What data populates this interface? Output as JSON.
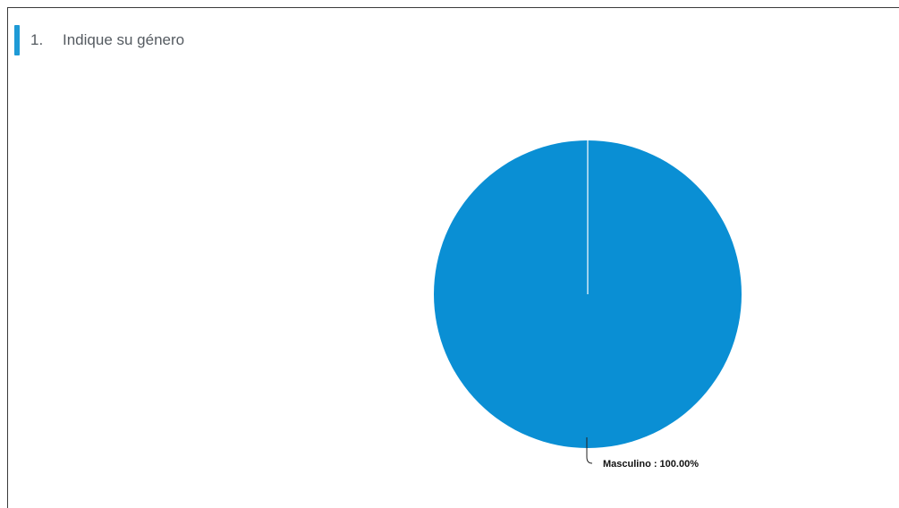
{
  "question": {
    "number": "1.",
    "title": "Indique su género"
  },
  "colors": {
    "accent": "#1e9ad6",
    "slice_primary": "#0a8fd4"
  },
  "chart_data": {
    "type": "pie",
    "categories": [
      "Masculino"
    ],
    "values": [
      100.0
    ],
    "labels": [
      "Masculino : 100.00%"
    ],
    "title": "",
    "legend": "none"
  }
}
